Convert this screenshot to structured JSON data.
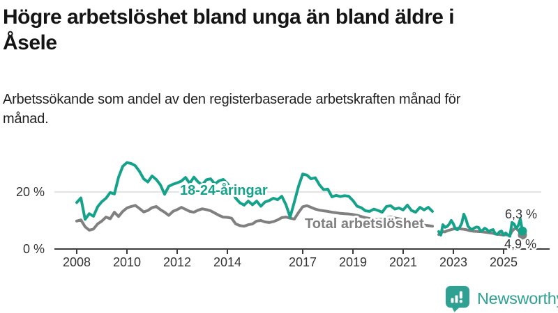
{
  "header": {
    "title": "Högre arbetslöshet bland unga än bland äldre i Åsele",
    "subtitle": "Arbetssökande som andel av den registerbaserade arbetskraften månad för månad."
  },
  "footer": {
    "brand": "Newsworthy",
    "logo_icon": "bar-chart-speech-bubble-icon"
  },
  "colors": {
    "young": "#15A28B",
    "total": "#808080",
    "axis_text": "#333333",
    "grid": "#DCDCDC",
    "axis_line": "#3C3C3C",
    "title_text": "#141414",
    "brand_teal": "#2EA193"
  },
  "chart_data": {
    "type": "line",
    "unit": "percent",
    "x_axis": {
      "ticks": [
        2008,
        2010,
        2012,
        2014,
        2017,
        2019,
        2021,
        2023,
        2025
      ],
      "start": 2008.0,
      "end": 2025.75
    },
    "y_axis": {
      "ticks": [
        {
          "value": 0,
          "label": "0 %"
        },
        {
          "value": 20,
          "label": "20 %"
        }
      ],
      "ylim": [
        0,
        34
      ]
    },
    "series": [
      {
        "id": "total",
        "name": "Total arbetslöshet",
        "color_key": "total",
        "end_label": "4,9 %",
        "end_value": 4.9,
        "segments": [
          {
            "start_year": 2008,
            "start_month": 1,
            "step_months": 2,
            "values": [
              9.8,
              10.2,
              7.8,
              6.6,
              7.0,
              8.8,
              9.8,
              11.2,
              10.6,
              12.9,
              11.4,
              13.2,
              14.4,
              14.9,
              15.3,
              14.2,
              13.0,
              13.5,
              14.5,
              14.9,
              13.8,
              12.9,
              11.8,
              13.2,
              13.8,
              14.6,
              13.9,
              13.2,
              12.9,
              13.6,
              14.1,
              13.8,
              13.4,
              12.6,
              11.8,
              11.2,
              11.1,
              10.8,
              8.8,
              8.2,
              8.0,
              8.5,
              8.8,
              9.8,
              10.0,
              9.5,
              9.3,
              9.6,
              10.2,
              11.0,
              11.2,
              10.8,
              10.5,
              12.8,
              14.8,
              15.2,
              14.6,
              14.0,
              13.6,
              13.4,
              13.2,
              12.9,
              12.7,
              12.5,
              12.4,
              12.3,
              12.1,
              11.8,
              11.4,
              11.0,
              10.7,
              10.4,
              10.3,
              10.5,
              11.0,
              11.2,
              10.9,
              10.6,
              10.2,
              9.8,
              9.4,
              9.0,
              8.7,
              8.4,
              8.2,
              8.0
            ]
          },
          {
            "start_year": 2022,
            "start_month": 6,
            "step_months": 1,
            "values": [
              5.1,
              5.5,
              6.1,
              6.0,
              6.4,
              6.6,
              6.8,
              7.0,
              7.2,
              7.3,
              7.1,
              7.0,
              6.9,
              6.8,
              6.6,
              6.4,
              6.3,
              6.2,
              6.2,
              6.1,
              6.1,
              6.0,
              5.9,
              5.8,
              5.7,
              5.6,
              5.5,
              5.3,
              5.2,
              5.1,
              5.0,
              4.9,
              5.0,
              4.9,
              4.8,
              6.2,
              7.0,
              7.3,
              6.5,
              5.6,
              4.9
            ]
          }
        ]
      },
      {
        "id": "young",
        "name": "18-24-åringar",
        "color_key": "young",
        "end_label": "6,3 %",
        "end_value": 6.3,
        "segments": [
          {
            "start_year": 2008,
            "start_month": 1,
            "step_months": 2,
            "values": [
              16.3,
              17.9,
              10.4,
              12.4,
              11.5,
              14.8,
              16.6,
              17.8,
              19.8,
              19.3,
              25.2,
              29.0,
              30.3,
              30.0,
              29.2,
              27.2,
              24.6,
              23.5,
              25.6,
              24.4,
              22.5,
              19.2,
              22.0,
              22.7,
              23.2,
              23.8,
              25.1,
              23.0,
              25.2,
              23.5,
              22.5,
              24.3,
              24.6,
              22.8,
              23.9,
              24.4,
              23.0,
              20.5,
              17.8,
              16.2,
              15.4,
              16.8,
              15.5,
              16.8,
              15.0,
              16.5,
              17.0,
              17.8,
              17.3,
              18.5,
              15.5,
              11.2,
              16.5,
              22.0,
              26.3,
              25.9,
              24.6,
              25.0,
              22.5,
              20.8,
              21.0,
              18.3,
              18.8,
              18.4,
              18.7,
              18.5,
              17.0,
              15.0,
              14.5,
              13.4,
              13.2,
              14.0,
              13.5,
              12.9,
              14.9,
              15.2,
              14.0,
              14.4,
              13.7,
              15.4,
              13.5,
              12.9,
              14.6,
              13.7,
              14.6,
              13.2
            ]
          },
          {
            "start_year": 2022,
            "start_month": 6,
            "step_months": 1,
            "values": [
              6.1,
              4.9,
              8.5,
              7.6,
              7.9,
              8.7,
              10.0,
              8.8,
              7.0,
              6.8,
              7.6,
              9.0,
              12.2,
              10.5,
              8.0,
              7.2,
              6.8,
              7.4,
              7.7,
              7.6,
              6.3,
              6.6,
              7.3,
              6.8,
              6.1,
              6.6,
              6.8,
              5.4,
              5.1,
              6.0,
              6.3,
              4.9,
              5.6,
              5.0,
              4.4,
              9.3,
              8.8,
              7.3,
              8.2,
              10.5,
              6.3
            ]
          }
        ]
      }
    ]
  }
}
